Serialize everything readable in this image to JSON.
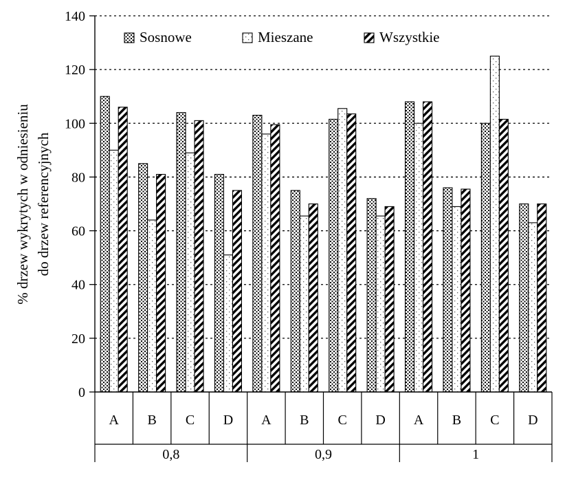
{
  "chart_data": {
    "type": "bar",
    "title": "",
    "ylabel_line1": "% drzew wykrytych w odniesieniu",
    "ylabel_line2": "do drzew referencyjnych",
    "ylim": [
      0,
      140
    ],
    "yticks": [
      "0",
      "20",
      "40",
      "60",
      "80",
      "100",
      "120",
      "140"
    ],
    "grid": "horizontal-dotted",
    "legend_position": "top",
    "categories": [
      "A",
      "B",
      "C",
      "D",
      "A",
      "B",
      "C",
      "D",
      "A",
      "B",
      "C",
      "D"
    ],
    "groups": [
      "0,8",
      "0,9",
      "1"
    ],
    "series": [
      {
        "name": "Sosnowe",
        "pattern": "dots",
        "values": [
          110,
          85,
          104,
          81,
          103,
          75,
          101.5,
          72,
          108,
          76,
          100,
          70
        ]
      },
      {
        "name": "Mieszane",
        "pattern": "sparse-dots",
        "values": [
          90,
          64,
          89,
          51,
          96,
          65.5,
          105.5,
          65.5,
          100,
          69,
          125,
          63
        ]
      },
      {
        "name": "Wszystkie",
        "pattern": "diagonal-hatch",
        "values": [
          106,
          81,
          101,
          75,
          99.5,
          70,
          103.5,
          69,
          108,
          75.5,
          101.5,
          70
        ]
      }
    ]
  }
}
